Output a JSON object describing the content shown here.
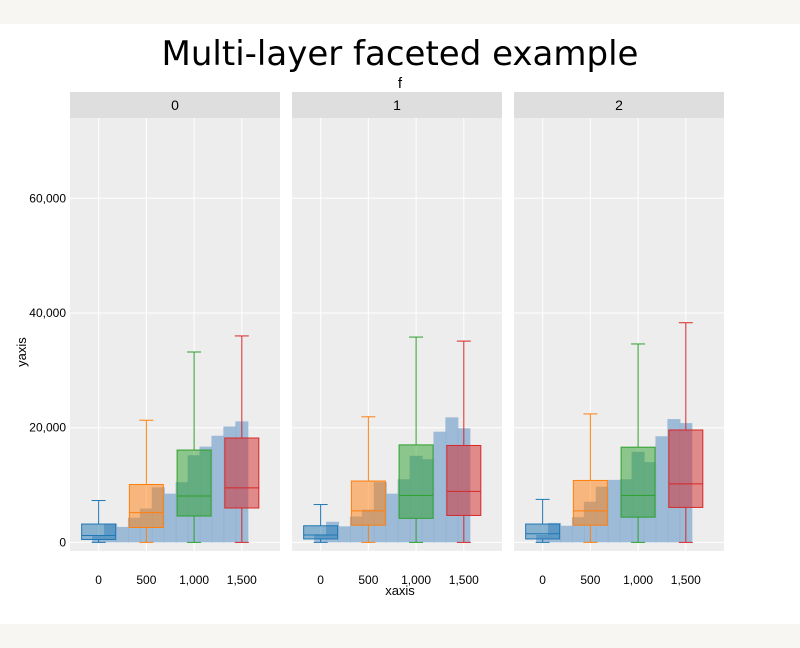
{
  "chart_data": {
    "type": "box",
    "title": "Multi-layer faceted example",
    "facet_label": "f",
    "facets": [
      "0",
      "1",
      "2"
    ],
    "xlabel": "xaxis",
    "ylabel": "yaxis",
    "xlim": [
      -300,
      1900
    ],
    "ylim": [
      -1500,
      74000
    ],
    "x_ticks": [
      0,
      500,
      1000,
      1500
    ],
    "x_tick_labels": [
      "0",
      "500",
      "1,000",
      "1,500"
    ],
    "y_ticks": [
      0,
      20000,
      40000,
      60000
    ],
    "y_tick_labels": [
      "0",
      "20,000",
      "40,000",
      "60,000"
    ],
    "grid": true,
    "box_colors": [
      "#1f77b4",
      "#ff7f0e",
      "#2ca02c",
      "#d62728"
    ],
    "bar_color": "#93b4d4",
    "panels": [
      {
        "facet": "0",
        "boxes": [
          {
            "x": 0,
            "whisker_low": 0,
            "q1": 500,
            "median": 1200,
            "q3": 3200,
            "whisker_high": 7300
          },
          {
            "x": 500,
            "whisker_low": 0,
            "q1": 2600,
            "median": 5200,
            "q3": 10100,
            "whisker_high": 21300
          },
          {
            "x": 1000,
            "whisker_low": 0,
            "q1": 4600,
            "median": 8100,
            "q3": 16100,
            "whisker_high": 33200
          },
          {
            "x": 1500,
            "whisker_low": 0,
            "q1": 6000,
            "median": 9500,
            "q3": 18200,
            "whisker_high": 36000
          }
        ],
        "bars": [
          {
            "x": 0,
            "y": 1200
          },
          {
            "x": 125,
            "y": 3300
          },
          {
            "x": 250,
            "y": 2700
          },
          {
            "x": 375,
            "y": 4300
          },
          {
            "x": 500,
            "y": 5900
          },
          {
            "x": 625,
            "y": 9600
          },
          {
            "x": 750,
            "y": 8500
          },
          {
            "x": 875,
            "y": 10500
          },
          {
            "x": 1000,
            "y": 15200
          },
          {
            "x": 1125,
            "y": 16700
          },
          {
            "x": 1250,
            "y": 18600
          },
          {
            "x": 1375,
            "y": 20200
          },
          {
            "x": 1500,
            "y": 21100
          }
        ]
      },
      {
        "facet": "1",
        "boxes": [
          {
            "x": 0,
            "whisker_low": 0,
            "q1": 600,
            "median": 1300,
            "q3": 2900,
            "whisker_high": 6600
          },
          {
            "x": 500,
            "whisker_low": 0,
            "q1": 3000,
            "median": 5500,
            "q3": 10700,
            "whisker_high": 21900
          },
          {
            "x": 1000,
            "whisker_low": 0,
            "q1": 4200,
            "median": 8200,
            "q3": 17000,
            "whisker_high": 35800
          },
          {
            "x": 1500,
            "whisker_low": 0,
            "q1": 4700,
            "median": 8900,
            "q3": 16900,
            "whisker_high": 35100
          }
        ],
        "bars": [
          {
            "x": 0,
            "y": 1400
          },
          {
            "x": 125,
            "y": 3600
          },
          {
            "x": 250,
            "y": 2800
          },
          {
            "x": 375,
            "y": 4500
          },
          {
            "x": 500,
            "y": 5700
          },
          {
            "x": 625,
            "y": 10500
          },
          {
            "x": 750,
            "y": 8500
          },
          {
            "x": 875,
            "y": 11000
          },
          {
            "x": 1000,
            "y": 15100
          },
          {
            "x": 1125,
            "y": 14500
          },
          {
            "x": 1250,
            "y": 19300
          },
          {
            "x": 1375,
            "y": 21800
          },
          {
            "x": 1500,
            "y": 19900
          }
        ]
      },
      {
        "facet": "2",
        "boxes": [
          {
            "x": 0,
            "whisker_low": 0,
            "q1": 600,
            "median": 1500,
            "q3": 3200,
            "whisker_high": 7500
          },
          {
            "x": 500,
            "whisker_low": 0,
            "q1": 3000,
            "median": 5500,
            "q3": 10800,
            "whisker_high": 22400
          },
          {
            "x": 1000,
            "whisker_low": 0,
            "q1": 4400,
            "median": 8200,
            "q3": 16600,
            "whisker_high": 34600
          },
          {
            "x": 1500,
            "whisker_low": 0,
            "q1": 6100,
            "median": 10200,
            "q3": 19600,
            "whisker_high": 38300
          }
        ],
        "bars": [
          {
            "x": 0,
            "y": 1300
          },
          {
            "x": 125,
            "y": 3400
          },
          {
            "x": 250,
            "y": 2900
          },
          {
            "x": 375,
            "y": 4400
          },
          {
            "x": 500,
            "y": 7100
          },
          {
            "x": 625,
            "y": 9700
          },
          {
            "x": 750,
            "y": 10900
          },
          {
            "x": 875,
            "y": 11000
          },
          {
            "x": 1000,
            "y": 15800
          },
          {
            "x": 1125,
            "y": 14000
          },
          {
            "x": 1250,
            "y": 18500
          },
          {
            "x": 1375,
            "y": 21500
          },
          {
            "x": 1500,
            "y": 20800
          }
        ]
      }
    ]
  }
}
